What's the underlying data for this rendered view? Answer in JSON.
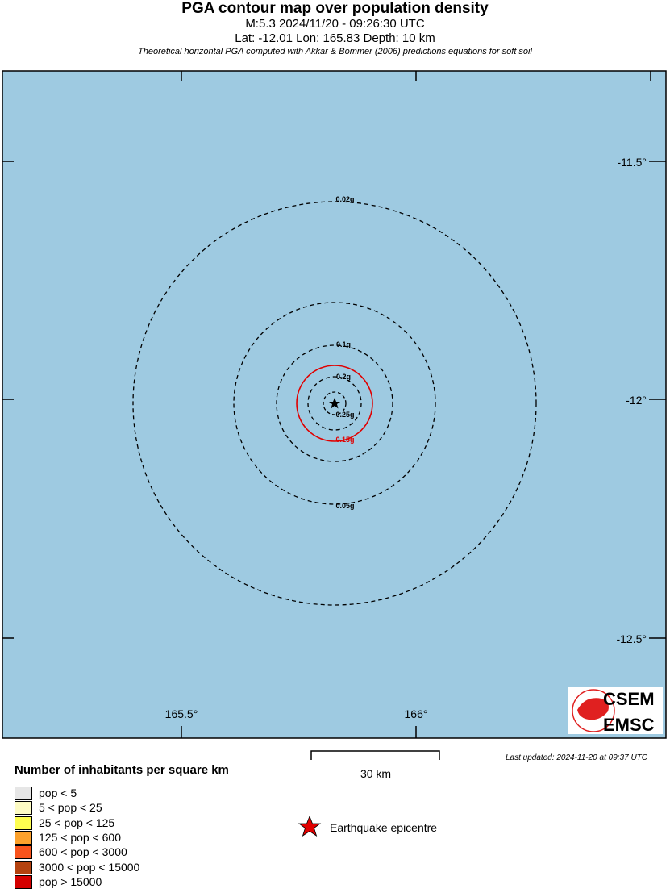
{
  "header": {
    "title": "PGA contour map over population density",
    "line1": "M:5.3 2024/11/20 - 09:26:30 UTC",
    "line2": "Lat: -12.01 Lon: 165.83 Depth: 10 km",
    "line3": "Theoretical horizontal PGA computed with Akkar & Bommer (2006) predictions equations for soft soil"
  },
  "map": {
    "sea_color": "#9ecae1",
    "lat_labels": [
      "-11.5°",
      "-12°",
      "-12.5°"
    ],
    "lon_labels": [
      "165.5°",
      "166°"
    ],
    "contours": [
      {
        "label": "0.02g",
        "color": "#000000"
      },
      {
        "label": "0.05g",
        "color": "#000000"
      },
      {
        "label": "0.1g",
        "color": "#000000"
      },
      {
        "label": "0.15g",
        "color": "#e00000"
      },
      {
        "label": "0.2g",
        "color": "#000000"
      },
      {
        "label": "0.25g",
        "color": "#000000"
      }
    ],
    "logo": [
      "CSEM",
      "EMSC"
    ]
  },
  "scale": {
    "label": "30 km"
  },
  "updated": "Last updated: 2024-11-20 at 09:37 UTC",
  "legend": {
    "title": "Number of inhabitants per square km",
    "items": [
      {
        "label": "pop < 5",
        "color": "#e6e6e6"
      },
      {
        "label": "5 < pop < 25",
        "color": "#fdfbc4"
      },
      {
        "label": "25 < pop < 125",
        "color": "#fefe50"
      },
      {
        "label": "125 < pop < 600",
        "color": "#fca12c"
      },
      {
        "label": "600 < pop < 3000",
        "color": "#f9541c"
      },
      {
        "label": "3000 < pop < 15000",
        "color": "#b4420f"
      },
      {
        "label": "pop > 15000",
        "color": "#d40000"
      }
    ],
    "epicentre": "Earthquake epicentre"
  }
}
